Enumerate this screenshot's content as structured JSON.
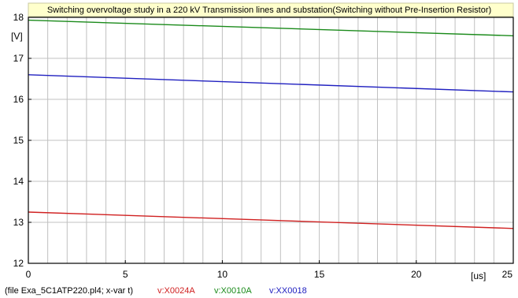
{
  "chart_data": {
    "type": "line",
    "title": "Switching overvoltage study in a 220 kV  Transmission lines and substation(Switching without Pre-Insertion Resistor)",
    "ylabel_unit": "[V]",
    "xlabel_unit": "[us]",
    "xlim": [
      0,
      25
    ],
    "ylim": [
      12,
      18
    ],
    "x_ticks": [
      "0",
      "5",
      "10",
      "15",
      "20",
      "25"
    ],
    "y_ticks": [
      "12",
      "13",
      "14",
      "15",
      "16",
      "17",
      "18"
    ],
    "grid": true,
    "x": [
      0,
      25
    ],
    "series": [
      {
        "name": "v:X0024A",
        "color": "#d02020",
        "values": [
          13.25,
          12.85
        ]
      },
      {
        "name": "v:X0010A",
        "color": "#1a8a1a",
        "values": [
          17.93,
          17.55
        ]
      },
      {
        "name": "v:XX0018",
        "color": "#2020c0",
        "values": [
          16.6,
          16.18
        ]
      }
    ],
    "footer": {
      "file_info": "(file Exa_5C1ATP220.pl4; x-var t)",
      "file_color": "#000000"
    }
  }
}
